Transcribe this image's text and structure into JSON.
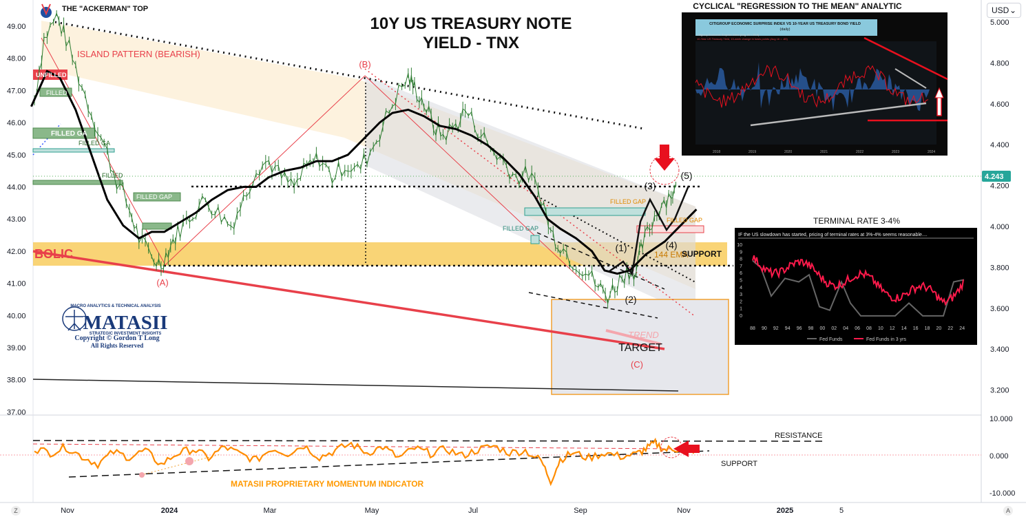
{
  "chart_data": {
    "type": "line",
    "title": "10Y US TREASURY NOTE YIELD - TNX",
    "title_lines": [
      "10Y US TREASURY NOTE",
      "YIELD - TNX"
    ],
    "top_left_label": "THE \"ACKERMAN\" TOP",
    "currency": "USD",
    "current_price_label": "4.243",
    "x_ticks": [
      "Nov",
      "2024",
      "Mar",
      "May",
      "Jul",
      "Sep",
      "Nov",
      "2025",
      "5"
    ],
    "y_left_ticks": [
      "49.00",
      "48.00",
      "47.00",
      "46.00",
      "45.00",
      "44.00",
      "43.00",
      "42.00",
      "41.00",
      "40.00",
      "39.00",
      "38.00",
      "37.00"
    ],
    "y_right_ticks": [
      "5.000",
      "4.800",
      "4.600",
      "4.400",
      "4.200",
      "4.000",
      "3.800",
      "3.600",
      "3.400",
      "3.200"
    ],
    "osc_ticks": [
      "10.000",
      "0.000",
      "-10.000"
    ],
    "price_series": [
      [
        0,
        46.7
      ],
      [
        6,
        48.6
      ],
      [
        14,
        49.3
      ],
      [
        20,
        48.6
      ],
      [
        28,
        47.4
      ],
      [
        36,
        46.3
      ],
      [
        44,
        45.3
      ],
      [
        52,
        44.2
      ],
      [
        60,
        43.3
      ],
      [
        66,
        42.4
      ],
      [
        74,
        41.8
      ],
      [
        80,
        41.6
      ],
      [
        86,
        42.2
      ],
      [
        92,
        42.7
      ],
      [
        100,
        43.2
      ],
      [
        108,
        43.6
      ],
      [
        116,
        43.2
      ],
      [
        124,
        42.8
      ],
      [
        132,
        43.6
      ],
      [
        140,
        44.6
      ],
      [
        148,
        44.8
      ],
      [
        156,
        44.3
      ],
      [
        164,
        44.0
      ],
      [
        172,
        44.6
      ],
      [
        180,
        44.9
      ],
      [
        188,
        44.3
      ],
      [
        196,
        44.7
      ],
      [
        204,
        44.5
      ],
      [
        212,
        45.1
      ],
      [
        220,
        45.9
      ],
      [
        228,
        46.8
      ],
      [
        236,
        47.4
      ],
      [
        240,
        47.1
      ],
      [
        246,
        46.6
      ],
      [
        252,
        45.9
      ],
      [
        258,
        45.6
      ],
      [
        266,
        45.9
      ],
      [
        272,
        46.4
      ],
      [
        280,
        45.8
      ],
      [
        288,
        45.2
      ],
      [
        296,
        44.8
      ],
      [
        304,
        44.3
      ],
      [
        312,
        44.4
      ],
      [
        320,
        43.7
      ],
      [
        326,
        42.6
      ],
      [
        332,
        42.2
      ],
      [
        340,
        41.7
      ],
      [
        348,
        41.4
      ],
      [
        356,
        40.9
      ],
      [
        362,
        40.6
      ],
      [
        368,
        41.0
      ],
      [
        374,
        41.4
      ],
      [
        380,
        41.4
      ],
      [
        384,
        42.2
      ],
      [
        390,
        42.9
      ],
      [
        396,
        43.5
      ],
      [
        402,
        43.8
      ],
      [
        406,
        43.9
      ]
    ],
    "ma_series": [
      [
        -2,
        46.5
      ],
      [
        8,
        47.6
      ],
      [
        16,
        47.4
      ],
      [
        26,
        46.4
      ],
      [
        36,
        45.0
      ],
      [
        46,
        43.6
      ],
      [
        56,
        42.8
      ],
      [
        66,
        42.4
      ],
      [
        74,
        42.6
      ],
      [
        82,
        42.6
      ],
      [
        92,
        42.9
      ],
      [
        102,
        43.2
      ],
      [
        112,
        43.6
      ],
      [
        122,
        43.9
      ],
      [
        132,
        44.0
      ],
      [
        140,
        44.0
      ],
      [
        148,
        44.3
      ],
      [
        158,
        44.5
      ],
      [
        168,
        44.6
      ],
      [
        178,
        44.8
      ],
      [
        188,
        44.8
      ],
      [
        198,
        45.0
      ],
      [
        208,
        45.5
      ],
      [
        218,
        46.0
      ],
      [
        226,
        46.3
      ],
      [
        236,
        46.4
      ],
      [
        246,
        46.2
      ],
      [
        256,
        45.9
      ],
      [
        266,
        45.8
      ],
      [
        276,
        45.6
      ],
      [
        286,
        45.3
      ],
      [
        296,
        44.9
      ],
      [
        306,
        44.4
      ],
      [
        316,
        43.7
      ],
      [
        324,
        43.0
      ],
      [
        332,
        42.7
      ],
      [
        342,
        42.4
      ],
      [
        352,
        42.0
      ],
      [
        360,
        41.4
      ],
      [
        368,
        41.3
      ],
      [
        376,
        41.4
      ],
      [
        386,
        41.9
      ],
      [
        398,
        42.3
      ],
      [
        412,
        43.0
      ],
      [
        418,
        43.3
      ]
    ],
    "oscillator_series": [
      [
        0,
        1.8
      ],
      [
        10,
        0.6
      ],
      [
        20,
        2.1
      ],
      [
        30,
        -0.4
      ],
      [
        40,
        -2.4
      ],
      [
        50,
        0.8
      ],
      [
        60,
        -0.6
      ],
      [
        70,
        1.2
      ],
      [
        80,
        -2.6
      ],
      [
        90,
        0.4
      ],
      [
        100,
        1.6
      ],
      [
        110,
        -0.8
      ],
      [
        120,
        2.2
      ],
      [
        130,
        0.2
      ],
      [
        140,
        -1.4
      ],
      [
        150,
        1.8
      ],
      [
        160,
        0.4
      ],
      [
        170,
        2.6
      ],
      [
        180,
        -0.6
      ],
      [
        190,
        1.2
      ],
      [
        200,
        3.0
      ],
      [
        210,
        0.6
      ],
      [
        220,
        2.2
      ],
      [
        230,
        -0.8
      ],
      [
        240,
        1.8
      ],
      [
        250,
        0.4
      ],
      [
        260,
        1.6
      ],
      [
        270,
        -0.2
      ],
      [
        280,
        1.4
      ],
      [
        290,
        2.4
      ],
      [
        300,
        0.6
      ],
      [
        310,
        1.2
      ],
      [
        320,
        -1.6
      ],
      [
        326,
        -7.0
      ],
      [
        332,
        -1.2
      ],
      [
        340,
        0.6
      ],
      [
        350,
        -0.8
      ],
      [
        360,
        0.6
      ],
      [
        370,
        -0.4
      ],
      [
        380,
        0.2
      ],
      [
        386,
        1.6
      ],
      [
        392,
        3.2
      ],
      [
        398,
        1.4
      ],
      [
        404,
        1.8
      ],
      [
        410,
        0.8
      ],
      [
        420,
        1.8
      ]
    ],
    "annotations": {
      "island": "ISLAND PATTERN (BEARISH)",
      "unfilled": "UNFILLED",
      "filled": "FILLED",
      "filled_gap": "FILLED GAP",
      "filled_gap_alt": "FILLED GA",
      "wave_A": "(A)",
      "wave_B": "(B)",
      "wave_C": "(C)",
      "w1": "(1)",
      "w2": "(2)",
      "w3": "(3)",
      "w4": "(4)",
      "w5": "(5)",
      "support": "SUPPORT",
      "ema": "144 EMA",
      "parabolic": "BOLIC",
      "trend": "TREND",
      "target": "TARGET",
      "resistance": "RESISTANCE",
      "osc_support": "SUPPORT",
      "momentum": "MATASII PROPRIETARY MOMENTUM INDICATOR"
    }
  },
  "inset_top": {
    "title": "CYCLICAL \"REGRESSION TO THE MEAN\" ANALYTIC",
    "chart_title_line1": "CITIGROUP ECONOMIC SURPRISE INDEX VS 10-YEAR US TREASURY BOND YIELD",
    "chart_title_line2": "(daily)",
    "legend_1": "Citigroup Economic Surprise Index (Aug 16 = 26.6)",
    "legend_2": "10-Year US Treasury Yield, 13-week change in basis points (Aug 16 = -65)",
    "years": [
      "2018",
      "2019",
      "2020",
      "2021",
      "2022",
      "2023",
      "2024"
    ]
  },
  "inset_bottom": {
    "title": "TERMINAL RATE 3-4%",
    "subtitle": "IF the US slowdown has started, pricing of terminal rates at 3%-4% seems reasonable....",
    "y_ticks": [
      "10",
      "9",
      "8",
      "7",
      "6",
      "5",
      "4",
      "3",
      "2",
      "1",
      "0"
    ],
    "x_ticks": [
      "88",
      "90",
      "92",
      "94",
      "96",
      "98",
      "00",
      "02",
      "04",
      "06",
      "08",
      "10",
      "12",
      "14",
      "16",
      "18",
      "20",
      "22",
      "24"
    ],
    "legend_1": "Fed Funds",
    "legend_2": "Fed Funds in 3 yrs"
  },
  "logo": {
    "top_line": "MACRO ANALYTICS & TECHNICAL ANALYSIS",
    "name": "MATASII",
    "tagline": "STRATEGIC INVESTMENT INSIGHTS",
    "copyright": "Copyright © Gordon T Long",
    "rights": "All Rights Reserved"
  },
  "ui": {
    "tz_icon_label": "Z",
    "auto_label": "A"
  },
  "colors": {
    "price": "#2e7d32",
    "ma": "#000000",
    "oscillator": "#ff8c00",
    "red": "#e8404a",
    "orange_band": "#f7c548",
    "grey_band": "#d8dae0"
  }
}
